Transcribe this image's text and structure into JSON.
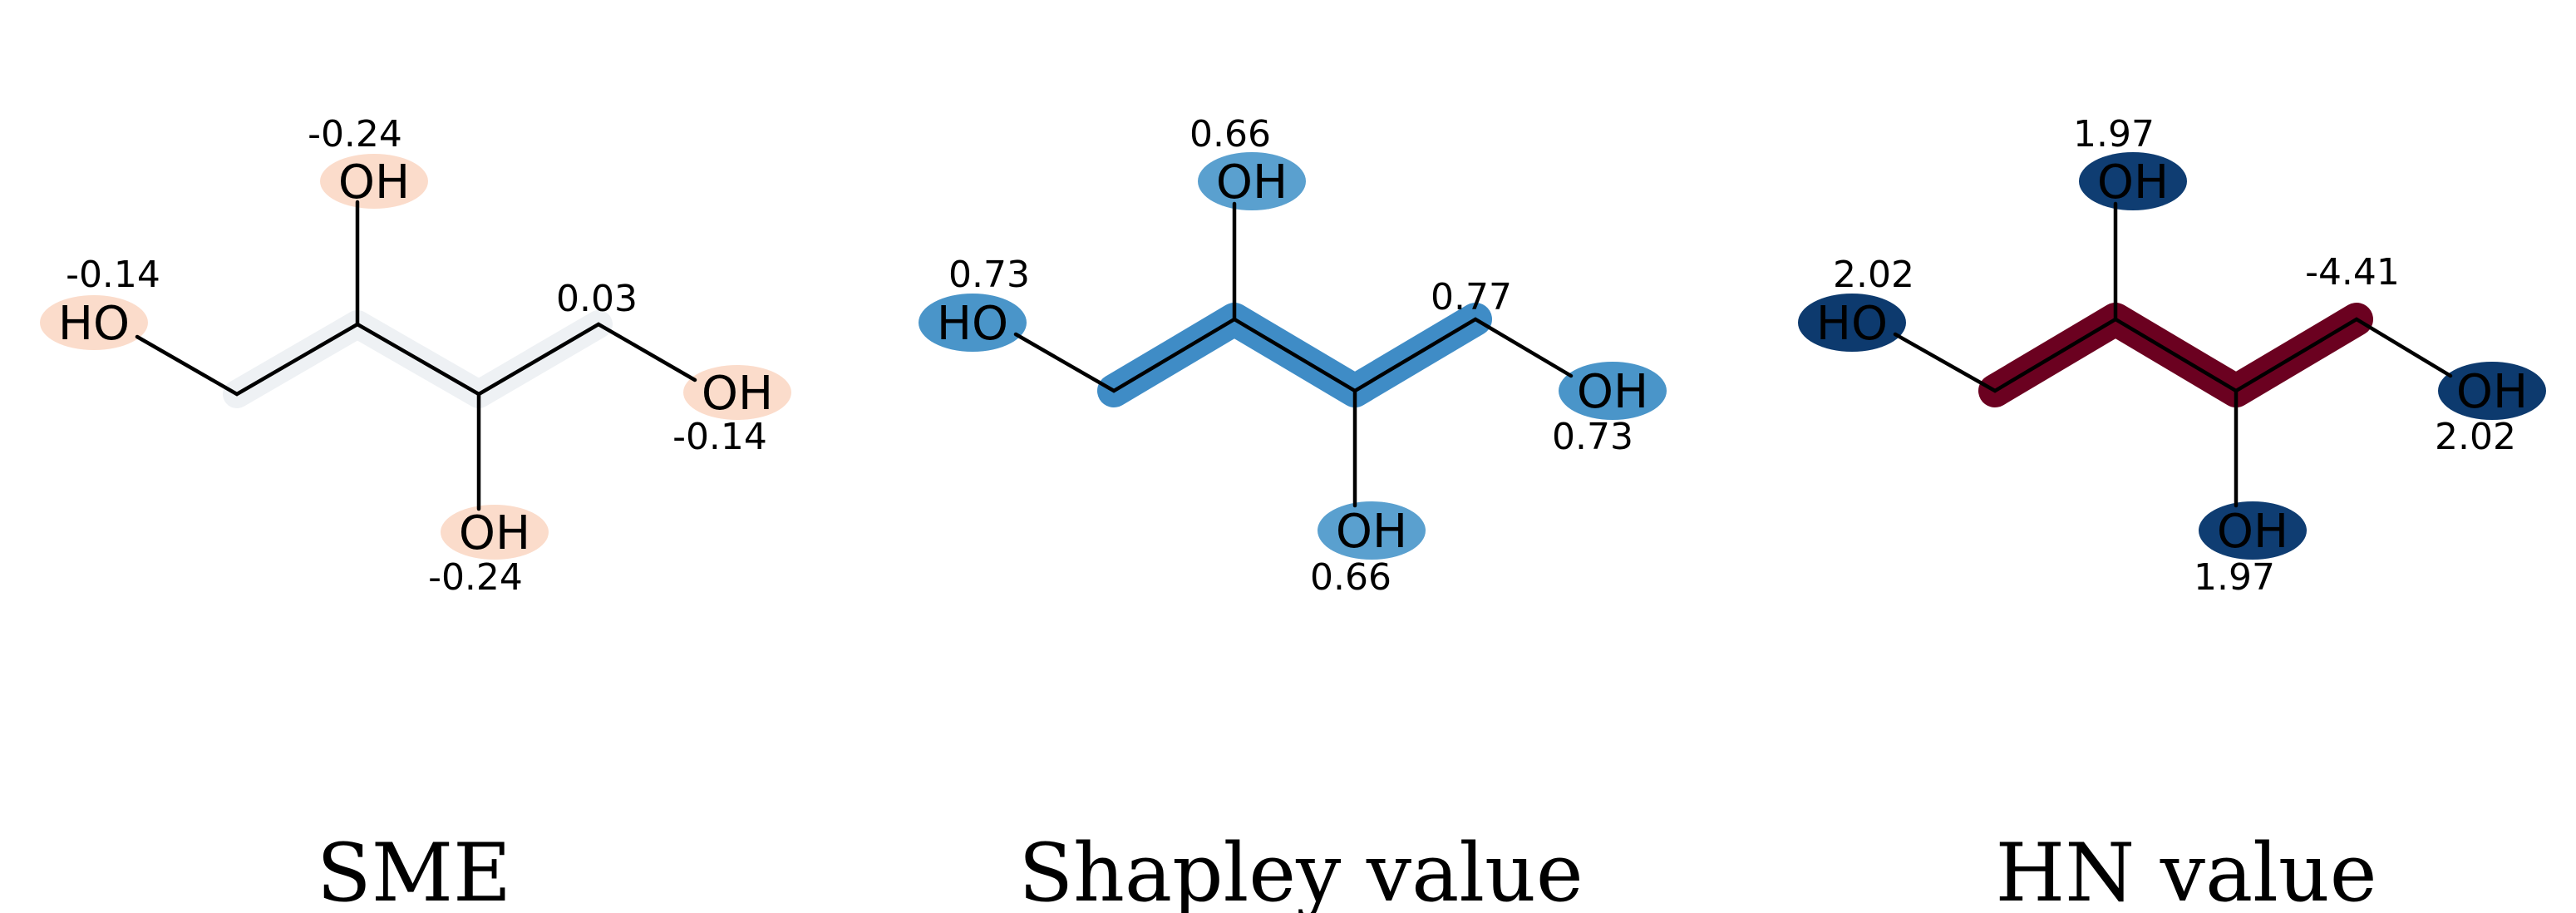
{
  "panels": [
    {
      "caption": "SME",
      "bond_color": "#eef1f4",
      "bond_values": [
        "0.03"
      ],
      "atoms": [
        {
          "label": "HO",
          "value": "-0.14",
          "color": "#fbdccb"
        },
        {
          "label": "OH",
          "value": "-0.24",
          "color": "#fbdccb"
        },
        {
          "label": "OH",
          "value": "-0.24",
          "color": "#fbdccb"
        },
        {
          "label": "OH",
          "value": "-0.14",
          "color": "#fbdccb"
        }
      ]
    },
    {
      "caption": "Shapley value",
      "bond_color": "#3f8cc6",
      "bond_values": [
        "0.77"
      ],
      "atoms": [
        {
          "label": "HO",
          "value": "0.73",
          "color": "#4a95c9"
        },
        {
          "label": "OH",
          "value": "0.66",
          "color": "#5aa0cf"
        },
        {
          "label": "OH",
          "value": "0.66",
          "color": "#5aa0cf"
        },
        {
          "label": "OH",
          "value": "0.73",
          "color": "#4a95c9"
        }
      ]
    },
    {
      "caption": "HN value",
      "bond_color": "#6b0120",
      "bond_values": [
        "-4.41"
      ],
      "atoms": [
        {
          "label": "HO",
          "value": "2.02",
          "color": "#0d3a6e"
        },
        {
          "label": "OH",
          "value": "1.97",
          "color": "#0f3d72"
        },
        {
          "label": "OH",
          "value": "1.97",
          "color": "#0f3d72"
        },
        {
          "label": "OH",
          "value": "2.02",
          "color": "#0d3a6e"
        }
      ]
    }
  ]
}
